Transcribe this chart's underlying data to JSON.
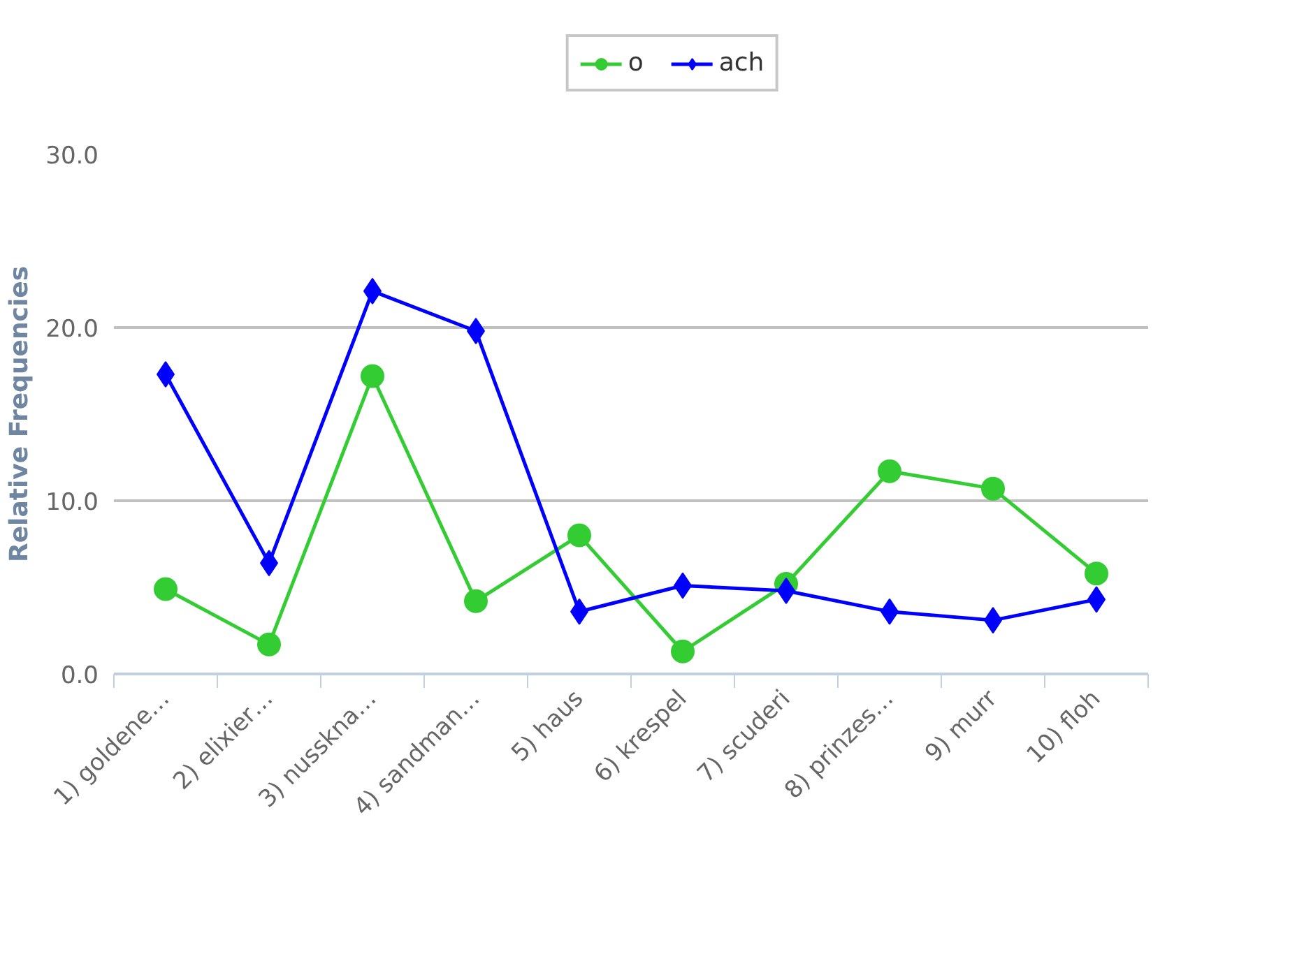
{
  "chart_data": {
    "type": "line",
    "ylabel": "Relative Frequencies",
    "categories": [
      "1) goldene…",
      "2) elixier…",
      "3) nusskna…",
      "4) sandman…",
      "5) haus",
      "6) krespel",
      "7) scuderi",
      "8) prinzes…",
      "9) murr",
      "10) floh"
    ],
    "series": [
      {
        "name": "o",
        "color": "#33cc33",
        "marker": "circle",
        "values": [
          4.9,
          1.7,
          17.2,
          4.2,
          8.0,
          1.3,
          5.2,
          11.7,
          10.7,
          5.8
        ]
      },
      {
        "name": "ach",
        "color": "#0000ff",
        "marker": "diamond",
        "values": [
          17.3,
          6.4,
          22.1,
          19.8,
          3.6,
          5.1,
          4.8,
          3.6,
          3.1,
          4.3
        ]
      }
    ],
    "ylim": [
      0,
      30
    ],
    "yticks": [
      {
        "value": 0,
        "label": "0.0"
      },
      {
        "value": 10,
        "label": "10.0"
      },
      {
        "value": 20,
        "label": "20.0"
      },
      {
        "value": 30,
        "label": "30.0"
      }
    ],
    "grid": "y",
    "legend": "top",
    "line_style": "solid"
  }
}
